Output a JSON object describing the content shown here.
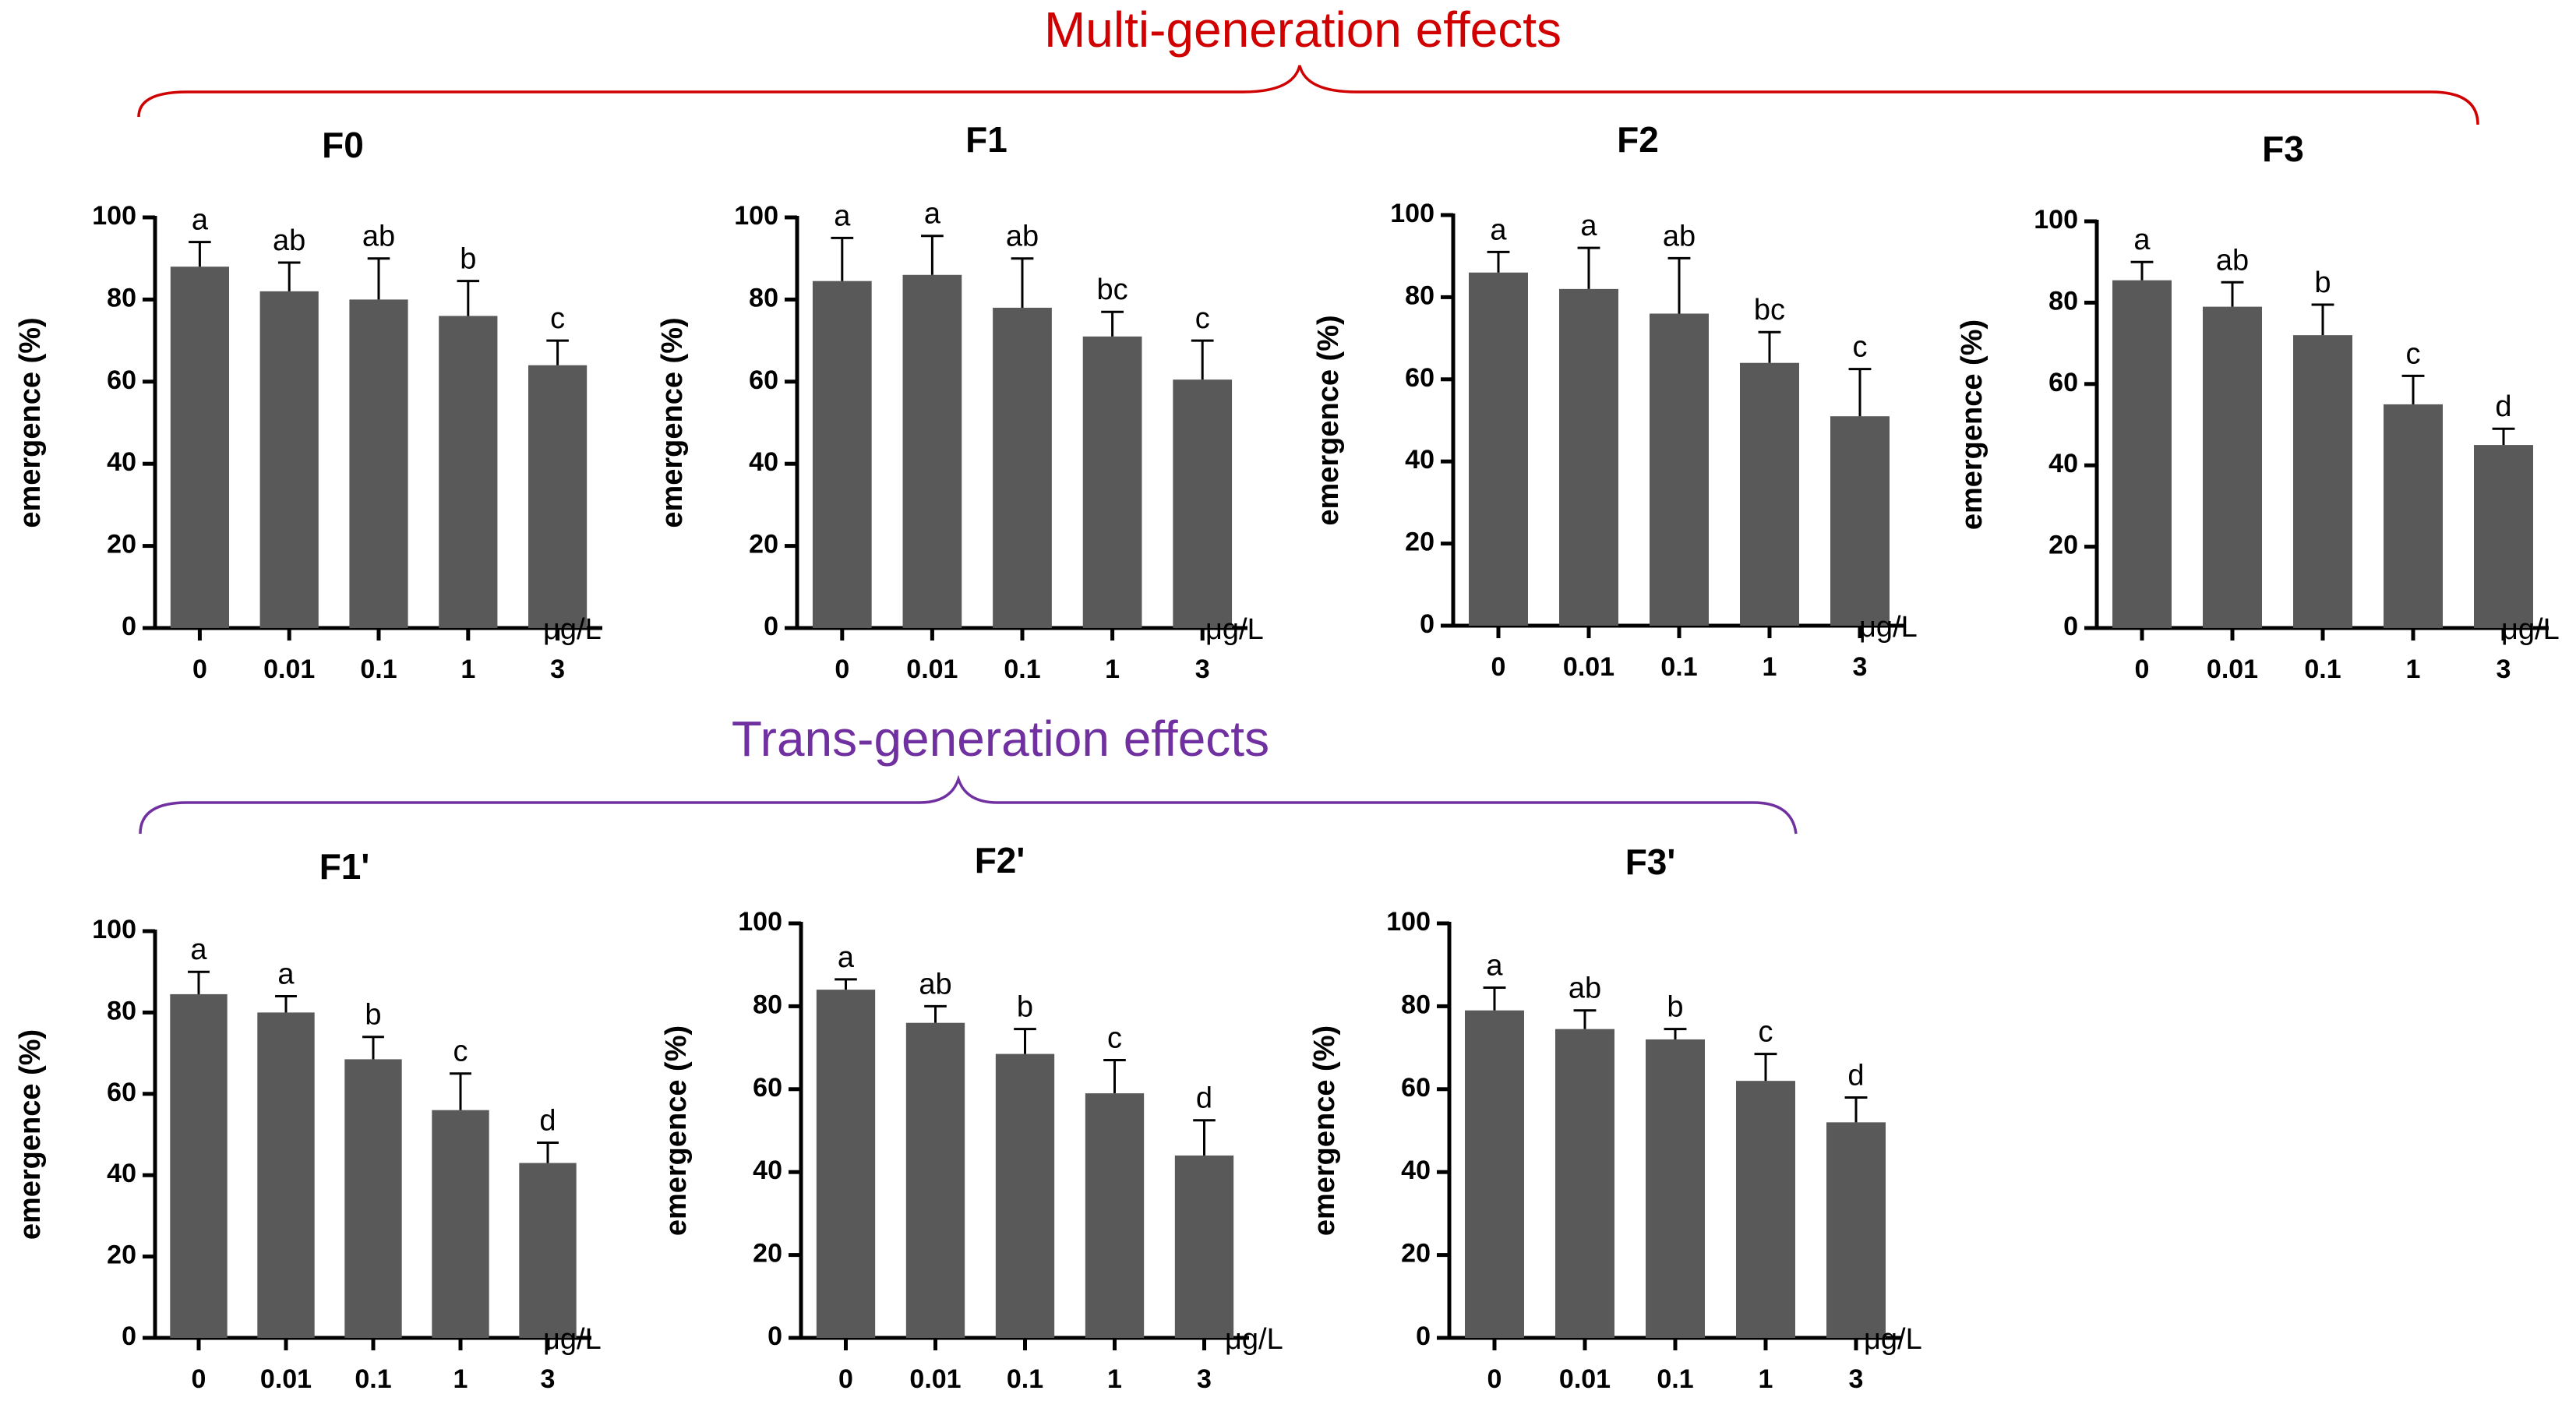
{
  "colors": {
    "bar": "#595959",
    "multi_generation": "#d00000",
    "trans_generation": "#7030a0"
  },
  "groups": {
    "multi": "Multi-generation effects",
    "trans": "Trans-generation effects"
  },
  "chart_data": [
    {
      "type": "bar",
      "title": "F0",
      "ylabel": "emergence (%)",
      "xlabel": "μg/L",
      "ylim": [
        0,
        100
      ],
      "yticks": [
        0,
        20,
        40,
        60,
        80,
        100
      ],
      "categories": [
        "0",
        "0.01",
        "0.1",
        "1",
        "3"
      ],
      "values": [
        88,
        82,
        80,
        76,
        64
      ],
      "errors": [
        6,
        7,
        10,
        8.5,
        6
      ],
      "letters": [
        "a",
        "ab",
        "ab",
        "b",
        "c"
      ]
    },
    {
      "type": "bar",
      "title": "F1",
      "ylabel": "emergence (%)",
      "xlabel": "μg/L",
      "ylim": [
        0,
        100
      ],
      "yticks": [
        0,
        20,
        40,
        60,
        80,
        100
      ],
      "categories": [
        "0",
        "0.01",
        "0.1",
        "1",
        "3"
      ],
      "values": [
        84.5,
        86,
        78,
        71,
        60.5
      ],
      "errors": [
        10.5,
        9.5,
        12,
        6,
        9.5
      ],
      "letters": [
        "a",
        "a",
        "ab",
        "bc",
        "c"
      ]
    },
    {
      "type": "bar",
      "title": "F2",
      "ylabel": "emergence (%)",
      "xlabel": "μg/L",
      "ylim": [
        0,
        100
      ],
      "yticks": [
        0,
        20,
        40,
        60,
        80,
        100
      ],
      "categories": [
        "0",
        "0.01",
        "0.1",
        "1",
        "3"
      ],
      "values": [
        86,
        82,
        76,
        64,
        51
      ],
      "errors": [
        5,
        10,
        13.5,
        7.5,
        11.5
      ],
      "letters": [
        "a",
        "a",
        "ab",
        "bc",
        "c"
      ]
    },
    {
      "type": "bar",
      "title": "F3",
      "ylabel": "emergence (%)",
      "xlabel": "μg/L",
      "ylim": [
        0,
        100
      ],
      "yticks": [
        0,
        20,
        40,
        60,
        80,
        100
      ],
      "categories": [
        "0",
        "0.01",
        "0.1",
        "1",
        "3"
      ],
      "values": [
        85.5,
        79,
        72,
        55,
        45
      ],
      "errors": [
        4.5,
        6,
        7.5,
        7,
        4
      ],
      "letters": [
        "a",
        "ab",
        "b",
        "c",
        "d"
      ]
    },
    {
      "type": "bar",
      "title": "F1'",
      "ylabel": "emergence (%)",
      "xlabel": "μg/L",
      "ylim": [
        0,
        100
      ],
      "yticks": [
        0,
        20,
        40,
        60,
        80,
        100
      ],
      "categories": [
        "0",
        "0.01",
        "0.1",
        "1",
        "3"
      ],
      "values": [
        84.5,
        80,
        68.5,
        56,
        43
      ],
      "errors": [
        5.5,
        4,
        5.5,
        9,
        5
      ],
      "letters": [
        "a",
        "a",
        "b",
        "c",
        "d"
      ]
    },
    {
      "type": "bar",
      "title": "F2'",
      "ylabel": "emergence (%)",
      "xlabel": "μg/L",
      "ylim": [
        0,
        100
      ],
      "yticks": [
        0,
        20,
        40,
        60,
        80,
        100
      ],
      "categories": [
        "0",
        "0.01",
        "0.1",
        "1",
        "3"
      ],
      "values": [
        84,
        76,
        68.5,
        59,
        44
      ],
      "errors": [
        2.5,
        4,
        6,
        8,
        8.5
      ],
      "letters": [
        "a",
        "ab",
        "b",
        "c",
        "d"
      ]
    },
    {
      "type": "bar",
      "title": "F3'",
      "ylabel": "emergence (%)",
      "xlabel": "μg/L",
      "ylim": [
        0,
        100
      ],
      "yticks": [
        0,
        20,
        40,
        60,
        80,
        100
      ],
      "categories": [
        "0",
        "0.01",
        "0.1",
        "1",
        "3"
      ],
      "values": [
        79,
        74.5,
        72,
        62,
        52
      ],
      "errors": [
        5.5,
        4.5,
        2.5,
        6.5,
        6
      ],
      "letters": [
        "a",
        "ab",
        "b",
        "c",
        "d"
      ]
    }
  ]
}
